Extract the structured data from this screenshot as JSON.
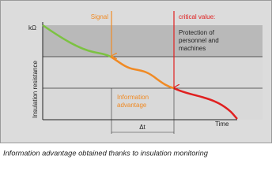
{
  "diagram": {
    "y_unit": "kΩ",
    "y_axis_title": "Insulation resistance",
    "x_axis_title": "Time",
    "signal_label": "Signal",
    "critical_label": "critical value:",
    "protection_lines": [
      "Protection of",
      "personnel and",
      "machines"
    ],
    "advantage_lines": [
      "Information",
      "advantage"
    ],
    "delta_label": "Δt"
  },
  "caption": "Information advantage obtained thanks to insulation monitoring"
}
